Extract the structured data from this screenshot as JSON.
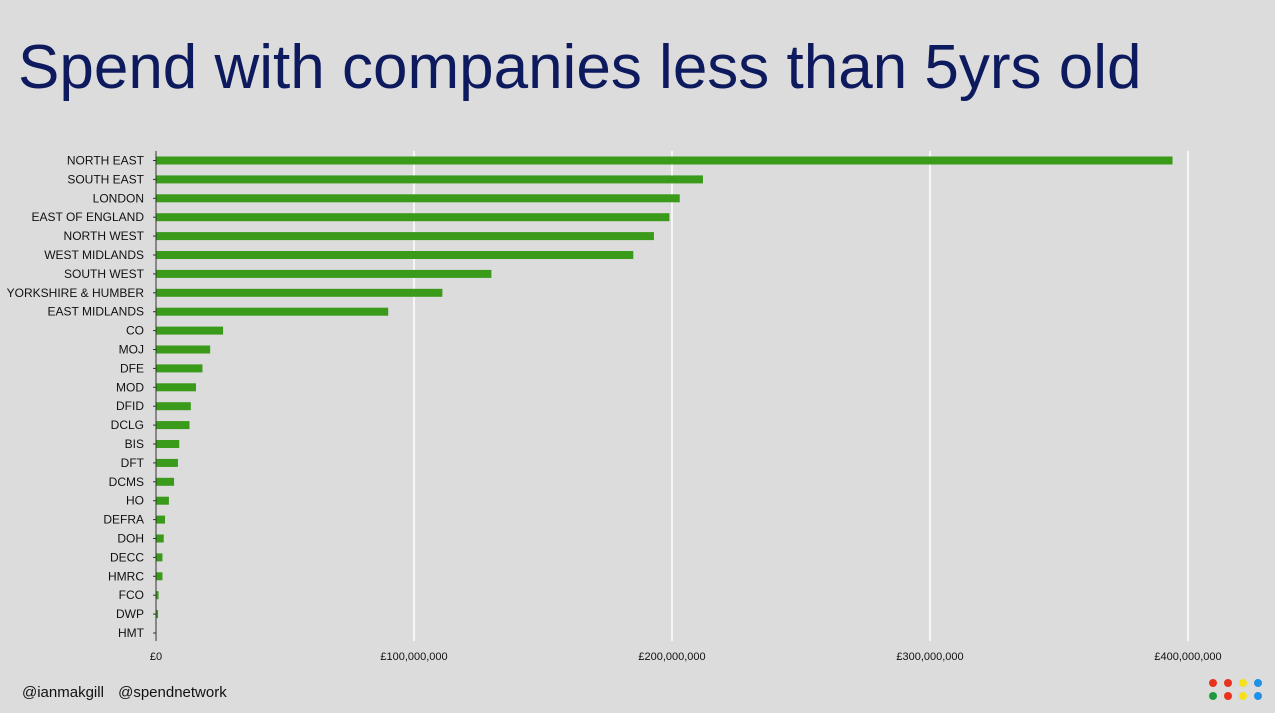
{
  "title": "Spend with companies less than 5yrs old",
  "footer": {
    "handle1": "@ianmakgill",
    "handle2": "@spendnetwork"
  },
  "logo_colors": [
    "#e8321e",
    "#e8321e",
    "#f5e11a",
    "#1e90e6",
    "#1e9a3c",
    "#e8321e",
    "#f5e11a",
    "#1e90e6"
  ],
  "chart_data": {
    "type": "bar",
    "orientation": "horizontal",
    "bar_color": "#3a9a1a",
    "grid": true,
    "xlim": [
      0,
      400000000
    ],
    "x_ticks": [
      0,
      100000000,
      200000000,
      300000000,
      400000000
    ],
    "x_tick_labels": [
      "£0",
      "£100,000,000",
      "£200,000,000",
      "£300,000,000",
      "£400,000,000"
    ],
    "categories": [
      "NORTH EAST",
      "SOUTH EAST",
      "LONDON",
      "EAST OF ENGLAND",
      "NORTH WEST",
      "WEST MIDLANDS",
      "SOUTH WEST",
      "YORKSHIRE & HUMBER",
      "EAST MIDLANDS",
      "CO",
      "MOJ",
      "DFE",
      "MOD",
      "DFID",
      "DCLG",
      "BIS",
      "DFT",
      "DCMS",
      "HO",
      "DEFRA",
      "DOH",
      "DECC",
      "HMRC",
      "FCO",
      "DWP",
      "HMT"
    ],
    "values": [
      394000000,
      212000000,
      203000000,
      199000000,
      193000000,
      185000000,
      130000000,
      111000000,
      90000000,
      26000000,
      21000000,
      18000000,
      15500000,
      13500000,
      13000000,
      9000000,
      8500000,
      7000000,
      5000000,
      3500000,
      3000000,
      2500000,
      2500000,
      1000000,
      800000,
      0
    ],
    "xlabel": "",
    "ylabel": ""
  }
}
